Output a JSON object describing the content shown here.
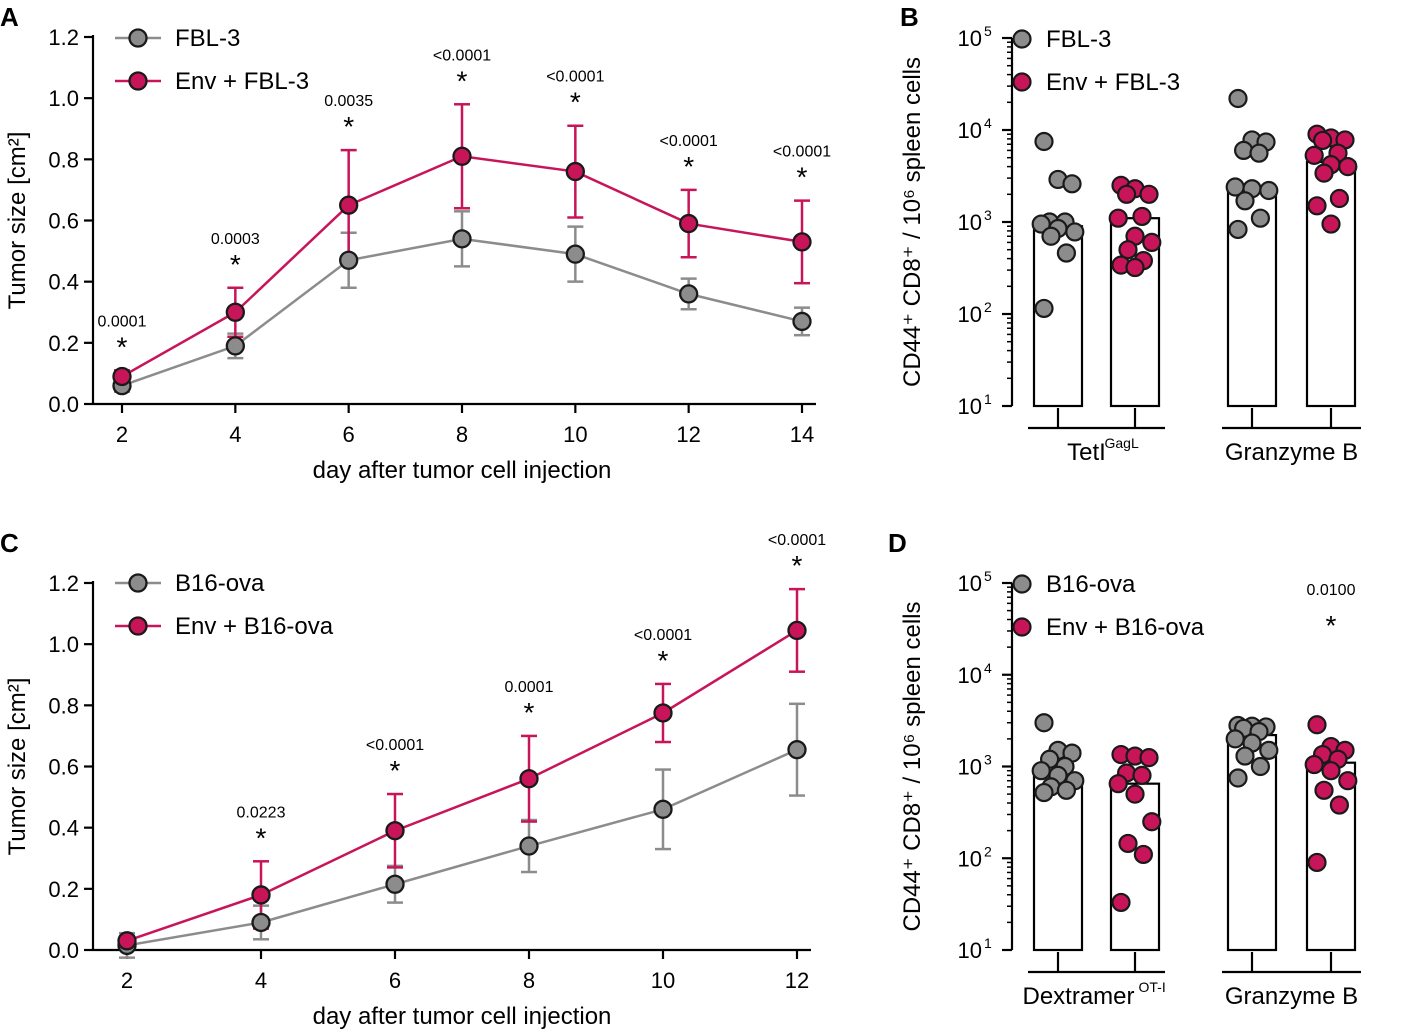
{
  "chart_data": [
    {
      "panel": "A",
      "type": "line",
      "xlabel": "day after tumor cell injection",
      "ylabel": "Tumor size [cm²]",
      "x": [
        2,
        4,
        6,
        8,
        10,
        12,
        14
      ],
      "x_ticks": [
        "2",
        "4",
        "6",
        "8",
        "10",
        "12",
        "14"
      ],
      "ylim": [
        0,
        1.2
      ],
      "y_ticks": [
        "0.0",
        "0.2",
        "0.4",
        "0.6",
        "0.8",
        "1.0",
        "1.2"
      ],
      "legend_placement": "top-left",
      "series": [
        {
          "name": "FBL-3",
          "color": "#8c8c8c",
          "marker_color": "#8c8c8c",
          "values": [
            0.06,
            0.19,
            0.47,
            0.54,
            0.49,
            0.36,
            0.27
          ],
          "errors": [
            0.02,
            0.04,
            0.09,
            0.09,
            0.09,
            0.05,
            0.045
          ]
        },
        {
          "name": "Env + FBL-3",
          "color": "#c8155a",
          "marker_color": "#c8155a",
          "values": [
            0.09,
            0.3,
            0.65,
            0.81,
            0.76,
            0.59,
            0.53
          ],
          "errors": [
            0.02,
            0.08,
            0.18,
            0.17,
            0.15,
            0.11,
            0.135
          ]
        }
      ],
      "significance": [
        {
          "x": 2,
          "p": "0.0001",
          "star": "*"
        },
        {
          "x": 4,
          "p": "0.0003",
          "star": "*"
        },
        {
          "x": 6,
          "p": "0.0035",
          "star": "*"
        },
        {
          "x": 8,
          "p": "<0.0001",
          "star": "*"
        },
        {
          "x": 10,
          "p": "<0.0001",
          "star": "*"
        },
        {
          "x": 12,
          "p": "<0.0001",
          "star": "*"
        },
        {
          "x": 14,
          "p": "<0.0001",
          "star": "*"
        }
      ]
    },
    {
      "panel": "B",
      "type": "bar",
      "scale": "log",
      "ylabel": "CD44⁺ CD8⁺ / 10⁶ spleen cells",
      "ylim": [
        10,
        100000
      ],
      "y_ticks": [
        {
          "base": "10",
          "exp": "1"
        },
        {
          "base": "10",
          "exp": "2"
        },
        {
          "base": "10",
          "exp": "3"
        },
        {
          "base": "10",
          "exp": "4"
        },
        {
          "base": "10",
          "exp": "5"
        }
      ],
      "legend_placement": "top-left",
      "groups": [
        {
          "label": "TetI",
          "sup": "GagL"
        },
        {
          "label": "Granzyme B",
          "sup": ""
        }
      ],
      "series": [
        {
          "name": "FBL-3",
          "color": "#8c8c8c",
          "bar_values": [
            900,
            2200
          ],
          "points": [
            [
              7500,
              2900,
              2600,
              1000,
              1000,
              950,
              850,
              780,
              700,
              460,
              115
            ],
            [
              22000,
              7800,
              7400,
              6000,
              5600,
              2400,
              2300,
              2200,
              1700,
              1100,
              830
            ]
          ]
        },
        {
          "name": "Env + FBL-3",
          "color": "#c8155a",
          "bar_values": [
            1100,
            4500
          ],
          "points": [
            [
              2500,
              2300,
              2000,
              2000,
              1150,
              1100,
              700,
              600,
              500,
              380,
              340,
              320
            ],
            [
              9000,
              8200,
              7800,
              7700,
              5600,
              5300,
              4200,
              4000,
              3400,
              1800,
              1500,
              950
            ]
          ]
        }
      ],
      "significance": []
    },
    {
      "panel": "C",
      "type": "line",
      "xlabel": "day after tumor cell injection",
      "ylabel": "Tumor size [cm²]",
      "x": [
        2,
        4,
        6,
        8,
        10,
        12
      ],
      "x_ticks": [
        "2",
        "4",
        "6",
        "8",
        "10",
        "12"
      ],
      "ylim": [
        0,
        1.2
      ],
      "y_ticks": [
        "0.0",
        "0.2",
        "0.4",
        "0.6",
        "0.8",
        "1.0",
        "1.2"
      ],
      "legend_placement": "top-left",
      "series": [
        {
          "name": "B16-ova",
          "color": "#8c8c8c",
          "marker_color": "#8c8c8c",
          "values": [
            0.015,
            0.09,
            0.215,
            0.34,
            0.46,
            0.655
          ],
          "errors": [
            0.04,
            0.055,
            0.06,
            0.085,
            0.13,
            0.15
          ]
        },
        {
          "name": "Env + B16-ova",
          "color": "#c8155a",
          "marker_color": "#c8155a",
          "values": [
            0.03,
            0.18,
            0.39,
            0.56,
            0.775,
            1.045
          ],
          "errors": [
            0.015,
            0.11,
            0.12,
            0.14,
            0.095,
            0.135
          ]
        }
      ],
      "significance": [
        {
          "x": 4,
          "p": "0.0223",
          "star": "*"
        },
        {
          "x": 6,
          "p": "<0.0001",
          "star": "*"
        },
        {
          "x": 8,
          "p": "0.0001",
          "star": "*"
        },
        {
          "x": 10,
          "p": "<0.0001",
          "star": "*"
        },
        {
          "x": 12,
          "p": "<0.0001",
          "star": "*"
        }
      ]
    },
    {
      "panel": "D",
      "type": "bar",
      "scale": "log",
      "ylabel": "CD44⁺ CD8⁺ / 10⁶ spleen cells",
      "ylim": [
        10,
        100000
      ],
      "y_ticks": [
        {
          "base": "10",
          "exp": "1"
        },
        {
          "base": "10",
          "exp": "2"
        },
        {
          "base": "10",
          "exp": "3"
        },
        {
          "base": "10",
          "exp": "4"
        },
        {
          "base": "10",
          "exp": "5"
        }
      ],
      "legend_placement": "top-left",
      "groups": [
        {
          "label": "Dextramer",
          "sup": "OT-I"
        },
        {
          "label": "Granzyme B",
          "sup": ""
        }
      ],
      "series": [
        {
          "name": "B16-ova",
          "color": "#8c8c8c",
          "bar_values": [
            780,
            2200
          ],
          "points": [
            [
              3000,
              1500,
              1400,
              1200,
              1000,
              900,
              800,
              700,
              600,
              550,
              520
            ],
            [
              2800,
              2750,
              2700,
              2600,
              2400,
              2000,
              1800,
              1500,
              1300,
              1000,
              750
            ]
          ]
        },
        {
          "name": "Env + B16-ova",
          "color": "#c8155a",
          "bar_values": [
            650,
            1100
          ],
          "points": [
            [
              1350,
              1300,
              1250,
              850,
              800,
              650,
              500,
              250,
              145,
              110,
              33
            ],
            [
              2850,
              1650,
              1500,
              1350,
              1200,
              1050,
              900,
              700,
              550,
              380,
              90
            ]
          ]
        }
      ],
      "significance": [
        {
          "group": 1,
          "p": "0.0100",
          "star": "*"
        }
      ]
    }
  ]
}
